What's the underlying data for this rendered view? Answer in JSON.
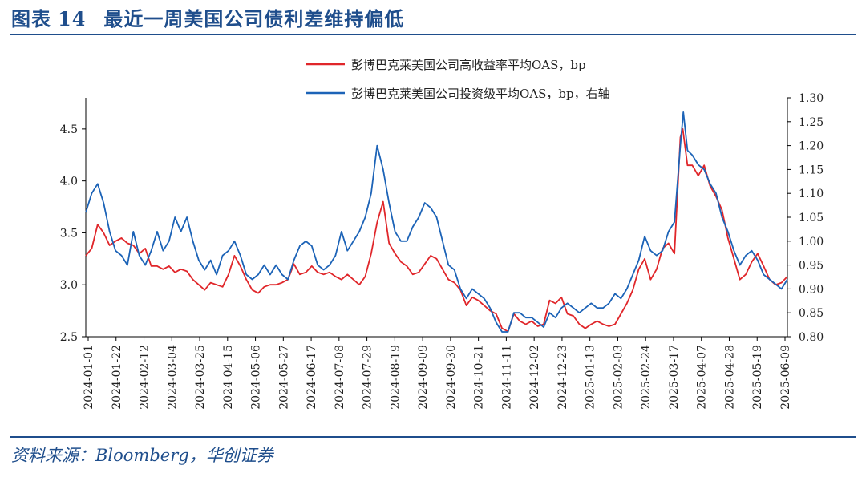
{
  "figure": {
    "label": "图表",
    "number": "14",
    "title": "最近一周美国公司债利差维持偏低"
  },
  "source": "资料来源：Bloomberg，华创证券",
  "colors": {
    "accent": "#1f4e8c",
    "high_yield": "#e0262a",
    "investment_grade": "#1c63b7",
    "axis": "#000000"
  },
  "chart_data": {
    "type": "line",
    "x_tick_labels": [
      "2024-01-01",
      "2024-01-22",
      "2024-02-12",
      "2024-03-04",
      "2024-03-25",
      "2024-04-15",
      "2024-05-06",
      "2024-05-27",
      "2024-06-17",
      "2024-07-08",
      "2024-07-29",
      "2024-08-19",
      "2024-09-09",
      "2024-09-30",
      "2024-10-21",
      "2024-11-11",
      "2024-12-02",
      "2024-12-23",
      "2025-01-13",
      "2025-02-03",
      "2025-02-24",
      "2025-03-17",
      "2025-04-07",
      "2025-04-28",
      "2025-05-19",
      "2025-06-09"
    ],
    "y_left": {
      "ticks": [
        "2.5",
        "3.0",
        "3.5",
        "4.0",
        "4.5"
      ],
      "range": [
        2.5,
        4.8
      ]
    },
    "y_right": {
      "ticks": [
        "0.80",
        "0.85",
        "0.90",
        "0.95",
        "1.00",
        "1.05",
        "1.10",
        "1.15",
        "1.20",
        "1.25",
        "1.30"
      ],
      "range": [
        0.8,
        1.3
      ]
    },
    "grid": false,
    "legend_position": "top-right",
    "series": [
      {
        "name": "彭博巴克莱美国公司高收益率平均OAS，bp",
        "axis": "left",
        "color": "#e0262a",
        "points": [
          [
            0,
            3.28
          ],
          [
            0.5,
            3.35
          ],
          [
            1,
            3.58
          ],
          [
            1.5,
            3.5
          ],
          [
            2,
            3.38
          ],
          [
            2.5,
            3.42
          ],
          [
            3,
            3.45
          ],
          [
            3.5,
            3.4
          ],
          [
            4,
            3.38
          ],
          [
            4.5,
            3.3
          ],
          [
            5,
            3.35
          ],
          [
            5.5,
            3.18
          ],
          [
            6,
            3.18
          ],
          [
            6.5,
            3.15
          ],
          [
            7,
            3.18
          ],
          [
            7.5,
            3.12
          ],
          [
            8,
            3.15
          ],
          [
            8.5,
            3.13
          ],
          [
            9,
            3.05
          ],
          [
            9.5,
            3.0
          ],
          [
            10,
            2.95
          ],
          [
            10.5,
            3.02
          ],
          [
            11,
            3.0
          ],
          [
            11.5,
            2.98
          ],
          [
            12,
            3.1
          ],
          [
            12.5,
            3.28
          ],
          [
            13,
            3.18
          ],
          [
            13.5,
            3.05
          ],
          [
            14,
            2.95
          ],
          [
            14.5,
            2.92
          ],
          [
            15,
            2.98
          ],
          [
            15.5,
            3.0
          ],
          [
            16,
            3.0
          ],
          [
            16.5,
            3.02
          ],
          [
            17,
            3.05
          ],
          [
            17.5,
            3.2
          ],
          [
            18,
            3.1
          ],
          [
            18.5,
            3.12
          ],
          [
            19,
            3.18
          ],
          [
            19.5,
            3.12
          ],
          [
            20,
            3.1
          ],
          [
            20.5,
            3.12
          ],
          [
            21,
            3.08
          ],
          [
            21.5,
            3.05
          ],
          [
            22,
            3.1
          ],
          [
            22.5,
            3.05
          ],
          [
            23,
            3.0
          ],
          [
            23.5,
            3.08
          ],
          [
            24,
            3.3
          ],
          [
            24.5,
            3.6
          ],
          [
            25,
            3.8
          ],
          [
            25.5,
            3.4
          ],
          [
            26,
            3.3
          ],
          [
            26.5,
            3.22
          ],
          [
            27,
            3.18
          ],
          [
            27.5,
            3.1
          ],
          [
            28,
            3.12
          ],
          [
            28.5,
            3.2
          ],
          [
            29,
            3.28
          ],
          [
            29.5,
            3.25
          ],
          [
            30,
            3.15
          ],
          [
            30.5,
            3.05
          ],
          [
            31,
            3.02
          ],
          [
            31.5,
            2.95
          ],
          [
            32,
            2.8
          ],
          [
            32.5,
            2.88
          ],
          [
            33,
            2.85
          ],
          [
            33.5,
            2.8
          ],
          [
            34,
            2.75
          ],
          [
            34.5,
            2.72
          ],
          [
            35,
            2.58
          ],
          [
            35.5,
            2.55
          ],
          [
            36,
            2.72
          ],
          [
            36.5,
            2.65
          ],
          [
            37,
            2.62
          ],
          [
            37.5,
            2.65
          ],
          [
            38,
            2.6
          ],
          [
            38.5,
            2.62
          ],
          [
            39,
            2.85
          ],
          [
            39.5,
            2.82
          ],
          [
            40,
            2.88
          ],
          [
            40.5,
            2.72
          ],
          [
            41,
            2.7
          ],
          [
            41.5,
            2.62
          ],
          [
            42,
            2.58
          ],
          [
            42.5,
            2.62
          ],
          [
            43,
            2.65
          ],
          [
            43.5,
            2.62
          ],
          [
            44,
            2.6
          ],
          [
            44.5,
            2.62
          ],
          [
            45,
            2.72
          ],
          [
            45.5,
            2.82
          ],
          [
            46,
            2.95
          ],
          [
            46.5,
            3.15
          ],
          [
            47,
            3.25
          ],
          [
            47.5,
            3.05
          ],
          [
            48,
            3.15
          ],
          [
            48.5,
            3.35
          ],
          [
            49,
            3.4
          ],
          [
            49.5,
            3.3
          ],
          [
            50,
            4.42
          ],
          [
            50.2,
            4.5
          ],
          [
            50.6,
            4.15
          ],
          [
            51,
            4.15
          ],
          [
            51.5,
            4.05
          ],
          [
            52,
            4.15
          ],
          [
            52.5,
            3.95
          ],
          [
            53,
            3.85
          ],
          [
            53.5,
            3.72
          ],
          [
            54,
            3.45
          ],
          [
            54.5,
            3.25
          ],
          [
            55,
            3.05
          ],
          [
            55.5,
            3.1
          ],
          [
            56,
            3.22
          ],
          [
            56.5,
            3.3
          ],
          [
            57,
            3.18
          ],
          [
            57.5,
            3.05
          ],
          [
            58,
            3.0
          ],
          [
            58.5,
            3.02
          ],
          [
            59,
            3.08
          ]
        ]
      },
      {
        "name": "彭博巴克莱美国公司投资级平均OAS，bp，右轴",
        "axis": "right",
        "color": "#1c63b7",
        "points": [
          [
            0,
            1.06
          ],
          [
            0.5,
            1.1
          ],
          [
            1,
            1.12
          ],
          [
            1.5,
            1.08
          ],
          [
            2,
            1.02
          ],
          [
            2.5,
            0.98
          ],
          [
            3,
            0.97
          ],
          [
            3.5,
            0.95
          ],
          [
            4,
            1.02
          ],
          [
            4.5,
            0.97
          ],
          [
            5,
            0.95
          ],
          [
            5.5,
            0.98
          ],
          [
            6,
            1.02
          ],
          [
            6.5,
            0.98
          ],
          [
            7,
            1.0
          ],
          [
            7.5,
            1.05
          ],
          [
            8,
            1.02
          ],
          [
            8.5,
            1.05
          ],
          [
            9,
            1.0
          ],
          [
            9.5,
            0.96
          ],
          [
            10,
            0.94
          ],
          [
            10.5,
            0.96
          ],
          [
            11,
            0.93
          ],
          [
            11.5,
            0.97
          ],
          [
            12,
            0.98
          ],
          [
            12.5,
            1.0
          ],
          [
            13,
            0.97
          ],
          [
            13.5,
            0.93
          ],
          [
            14,
            0.92
          ],
          [
            14.5,
            0.93
          ],
          [
            15,
            0.95
          ],
          [
            15.5,
            0.93
          ],
          [
            16,
            0.95
          ],
          [
            16.5,
            0.93
          ],
          [
            17,
            0.92
          ],
          [
            17.5,
            0.96
          ],
          [
            18,
            0.99
          ],
          [
            18.5,
            1.0
          ],
          [
            19,
            0.99
          ],
          [
            19.5,
            0.95
          ],
          [
            20,
            0.94
          ],
          [
            20.5,
            0.95
          ],
          [
            21,
            0.97
          ],
          [
            21.5,
            1.02
          ],
          [
            22,
            0.98
          ],
          [
            22.5,
            1.0
          ],
          [
            23,
            1.02
          ],
          [
            23.5,
            1.05
          ],
          [
            24,
            1.1
          ],
          [
            24.5,
            1.2
          ],
          [
            25,
            1.15
          ],
          [
            25.5,
            1.08
          ],
          [
            26,
            1.02
          ],
          [
            26.5,
            1.0
          ],
          [
            27,
            1.0
          ],
          [
            27.5,
            1.03
          ],
          [
            28,
            1.05
          ],
          [
            28.5,
            1.08
          ],
          [
            29,
            1.07
          ],
          [
            29.5,
            1.05
          ],
          [
            30,
            1.0
          ],
          [
            30.5,
            0.95
          ],
          [
            31,
            0.94
          ],
          [
            31.5,
            0.9
          ],
          [
            32,
            0.88
          ],
          [
            32.5,
            0.9
          ],
          [
            33,
            0.89
          ],
          [
            33.5,
            0.88
          ],
          [
            34,
            0.86
          ],
          [
            34.5,
            0.83
          ],
          [
            35,
            0.81
          ],
          [
            35.5,
            0.81
          ],
          [
            36,
            0.85
          ],
          [
            36.5,
            0.85
          ],
          [
            37,
            0.84
          ],
          [
            37.5,
            0.84
          ],
          [
            38,
            0.83
          ],
          [
            38.5,
            0.82
          ],
          [
            39,
            0.85
          ],
          [
            39.5,
            0.84
          ],
          [
            40,
            0.86
          ],
          [
            40.5,
            0.87
          ],
          [
            41,
            0.86
          ],
          [
            41.5,
            0.85
          ],
          [
            42,
            0.86
          ],
          [
            42.5,
            0.87
          ],
          [
            43,
            0.86
          ],
          [
            43.5,
            0.86
          ],
          [
            44,
            0.87
          ],
          [
            44.5,
            0.89
          ],
          [
            45,
            0.88
          ],
          [
            45.5,
            0.9
          ],
          [
            46,
            0.93
          ],
          [
            46.5,
            0.96
          ],
          [
            47,
            1.01
          ],
          [
            47.5,
            0.98
          ],
          [
            48,
            0.97
          ],
          [
            48.5,
            0.98
          ],
          [
            49,
            1.02
          ],
          [
            49.5,
            1.04
          ],
          [
            50,
            1.2
          ],
          [
            50.25,
            1.27
          ],
          [
            50.6,
            1.19
          ],
          [
            51,
            1.18
          ],
          [
            51.5,
            1.16
          ],
          [
            52,
            1.15
          ],
          [
            52.5,
            1.12
          ],
          [
            53,
            1.1
          ],
          [
            53.5,
            1.05
          ],
          [
            54,
            1.02
          ],
          [
            54.5,
            0.98
          ],
          [
            55,
            0.95
          ],
          [
            55.5,
            0.97
          ],
          [
            56,
            0.98
          ],
          [
            56.5,
            0.96
          ],
          [
            57,
            0.93
          ],
          [
            57.5,
            0.92
          ],
          [
            58,
            0.91
          ],
          [
            58.5,
            0.9
          ],
          [
            59,
            0.92
          ]
        ]
      }
    ]
  }
}
